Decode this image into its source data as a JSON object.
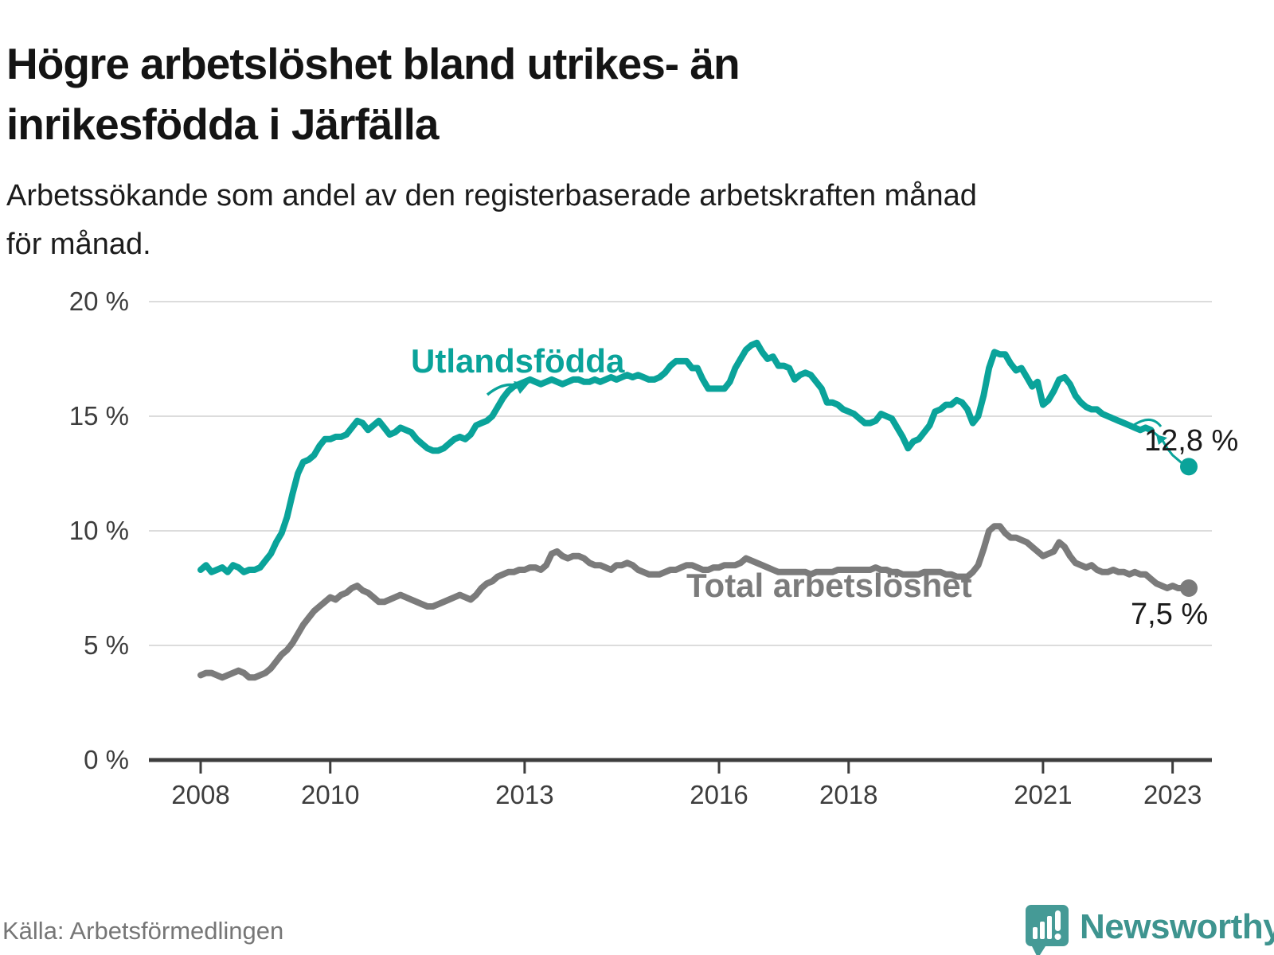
{
  "title": {
    "line1": "Högre arbetslöshet bland utrikes- än",
    "line2": "inrikesfödda i Järfälla"
  },
  "subtitle": {
    "line1": "Arbetssökande som andel av den registerbaserade arbetskraften månad",
    "line2": "för månad."
  },
  "source": "Källa: Arbetsförmedlingen",
  "brand": {
    "name": "Newsworthy",
    "color": "#3e948f",
    "bubble_color": "#459a96",
    "bubble_icon": "bar-chart-exclamation"
  },
  "colors": {
    "foreign_line": "#0aa39a",
    "total_line": "#7b7b7b",
    "grid": "#dcdcdc",
    "axis": "#3d3d3d",
    "tick_text": "#3d3d3d",
    "end_label_text": "#1a1a1a"
  },
  "chart_data": {
    "type": "line",
    "title": "Högre arbetslöshet bland utrikes- än inrikesfödda i Järfälla",
    "subtitle": "Arbetssökande som andel av den registerbaserade arbetskraften månad för månad.",
    "x_frequency": "monthly",
    "x_start": "2008-01",
    "x_end": "2023-04",
    "xlim": [
      2008,
      2023.6
    ],
    "ylim": [
      0,
      20
    ],
    "grid": true,
    "legend": "inline-labels",
    "x_ticks": [
      {
        "year": 2008,
        "label": "2008"
      },
      {
        "year": 2010,
        "label": "2010"
      },
      {
        "year": 2013,
        "label": "2013"
      },
      {
        "year": 2016,
        "label": "2016"
      },
      {
        "year": 2018,
        "label": "2018"
      },
      {
        "year": 2021,
        "label": "2021"
      },
      {
        "year": 2023,
        "label": "2023"
      }
    ],
    "y_ticks": [
      {
        "value": 0,
        "label": "0 %"
      },
      {
        "value": 5,
        "label": "5 %"
      },
      {
        "value": 10,
        "label": "10 %"
      },
      {
        "value": 15,
        "label": "15 %"
      },
      {
        "value": 20,
        "label": "20 %"
      }
    ],
    "series": [
      {
        "name": "Utlandsfödda",
        "color": "#0aa39a",
        "end_label": "12,8 %",
        "end_value": 12.8,
        "values": [
          8.3,
          8.5,
          8.2,
          8.3,
          8.4,
          8.2,
          8.5,
          8.4,
          8.2,
          8.3,
          8.3,
          8.4,
          8.7,
          9.0,
          9.5,
          9.9,
          10.6,
          11.6,
          12.5,
          13.0,
          13.1,
          13.3,
          13.7,
          14.0,
          14.0,
          14.1,
          14.1,
          14.2,
          14.5,
          14.8,
          14.7,
          14.4,
          14.6,
          14.8,
          14.5,
          14.2,
          14.3,
          14.5,
          14.4,
          14.3,
          14.0,
          13.8,
          13.6,
          13.5,
          13.5,
          13.6,
          13.8,
          14.0,
          14.1,
          14.0,
          14.2,
          14.6,
          14.7,
          14.8,
          15.0,
          15.4,
          15.8,
          16.1,
          16.3,
          16.4,
          16.5,
          16.6,
          16.5,
          16.4,
          16.5,
          16.6,
          16.5,
          16.4,
          16.5,
          16.6,
          16.6,
          16.5,
          16.5,
          16.6,
          16.5,
          16.6,
          16.7,
          16.6,
          16.7,
          16.8,
          16.7,
          16.8,
          16.7,
          16.6,
          16.6,
          16.7,
          16.9,
          17.2,
          17.4,
          17.4,
          17.4,
          17.1,
          17.1,
          16.6,
          16.2,
          16.2,
          16.2,
          16.2,
          16.5,
          17.1,
          17.5,
          17.9,
          18.1,
          18.2,
          17.8,
          17.5,
          17.6,
          17.2,
          17.2,
          17.1,
          16.6,
          16.8,
          16.9,
          16.8,
          16.5,
          16.2,
          15.6,
          15.6,
          15.5,
          15.3,
          15.2,
          15.1,
          14.9,
          14.7,
          14.7,
          14.8,
          15.1,
          15.0,
          14.9,
          14.5,
          14.1,
          13.6,
          13.9,
          14.0,
          14.3,
          14.6,
          15.2,
          15.3,
          15.5,
          15.5,
          15.7,
          15.6,
          15.3,
          14.7,
          15.0,
          15.9,
          17.1,
          17.8,
          17.7,
          17.7,
          17.3,
          17.0,
          17.1,
          16.7,
          16.3,
          16.5,
          15.5,
          15.7,
          16.1,
          16.6,
          16.7,
          16.4,
          15.9,
          15.6,
          15.4,
          15.3,
          15.3,
          15.1,
          15.0,
          14.9,
          14.8,
          14.7,
          14.6,
          14.5,
          14.4,
          14.5,
          14.4,
          14.2,
          14.0,
          13.6,
          13.3,
          13.1,
          12.9,
          12.8
        ]
      },
      {
        "name": "Total arbetslöshet",
        "color": "#7b7b7b",
        "end_label": "7,5 %",
        "end_value": 7.5,
        "values": [
          3.7,
          3.8,
          3.8,
          3.7,
          3.6,
          3.7,
          3.8,
          3.9,
          3.8,
          3.6,
          3.6,
          3.7,
          3.8,
          4.0,
          4.3,
          4.6,
          4.8,
          5.1,
          5.5,
          5.9,
          6.2,
          6.5,
          6.7,
          6.9,
          7.1,
          7.0,
          7.2,
          7.3,
          7.5,
          7.6,
          7.4,
          7.3,
          7.1,
          6.9,
          6.9,
          7.0,
          7.1,
          7.2,
          7.1,
          7.0,
          6.9,
          6.8,
          6.7,
          6.7,
          6.8,
          6.9,
          7.0,
          7.1,
          7.2,
          7.1,
          7.0,
          7.2,
          7.5,
          7.7,
          7.8,
          8.0,
          8.1,
          8.2,
          8.2,
          8.3,
          8.3,
          8.4,
          8.4,
          8.3,
          8.5,
          9.0,
          9.1,
          8.9,
          8.8,
          8.9,
          8.9,
          8.8,
          8.6,
          8.5,
          8.5,
          8.4,
          8.3,
          8.5,
          8.5,
          8.6,
          8.5,
          8.3,
          8.2,
          8.1,
          8.1,
          8.1,
          8.2,
          8.3,
          8.3,
          8.4,
          8.5,
          8.5,
          8.4,
          8.3,
          8.3,
          8.4,
          8.4,
          8.5,
          8.5,
          8.5,
          8.6,
          8.8,
          8.7,
          8.6,
          8.5,
          8.4,
          8.3,
          8.2,
          8.2,
          8.2,
          8.2,
          8.2,
          8.2,
          8.1,
          8.2,
          8.2,
          8.2,
          8.2,
          8.3,
          8.3,
          8.3,
          8.3,
          8.3,
          8.3,
          8.3,
          8.4,
          8.3,
          8.3,
          8.2,
          8.2,
          8.1,
          8.1,
          8.1,
          8.1,
          8.2,
          8.2,
          8.2,
          8.2,
          8.1,
          8.1,
          8.0,
          8.0,
          8.0,
          8.2,
          8.5,
          9.2,
          10.0,
          10.2,
          10.2,
          9.9,
          9.7,
          9.7,
          9.6,
          9.5,
          9.3,
          9.1,
          8.9,
          9.0,
          9.1,
          9.5,
          9.3,
          8.9,
          8.6,
          8.5,
          8.4,
          8.5,
          8.3,
          8.2,
          8.2,
          8.3,
          8.2,
          8.2,
          8.1,
          8.2,
          8.1,
          8.1,
          7.9,
          7.7,
          7.6,
          7.5,
          7.6,
          7.5,
          7.5,
          7.5
        ]
      }
    ]
  }
}
